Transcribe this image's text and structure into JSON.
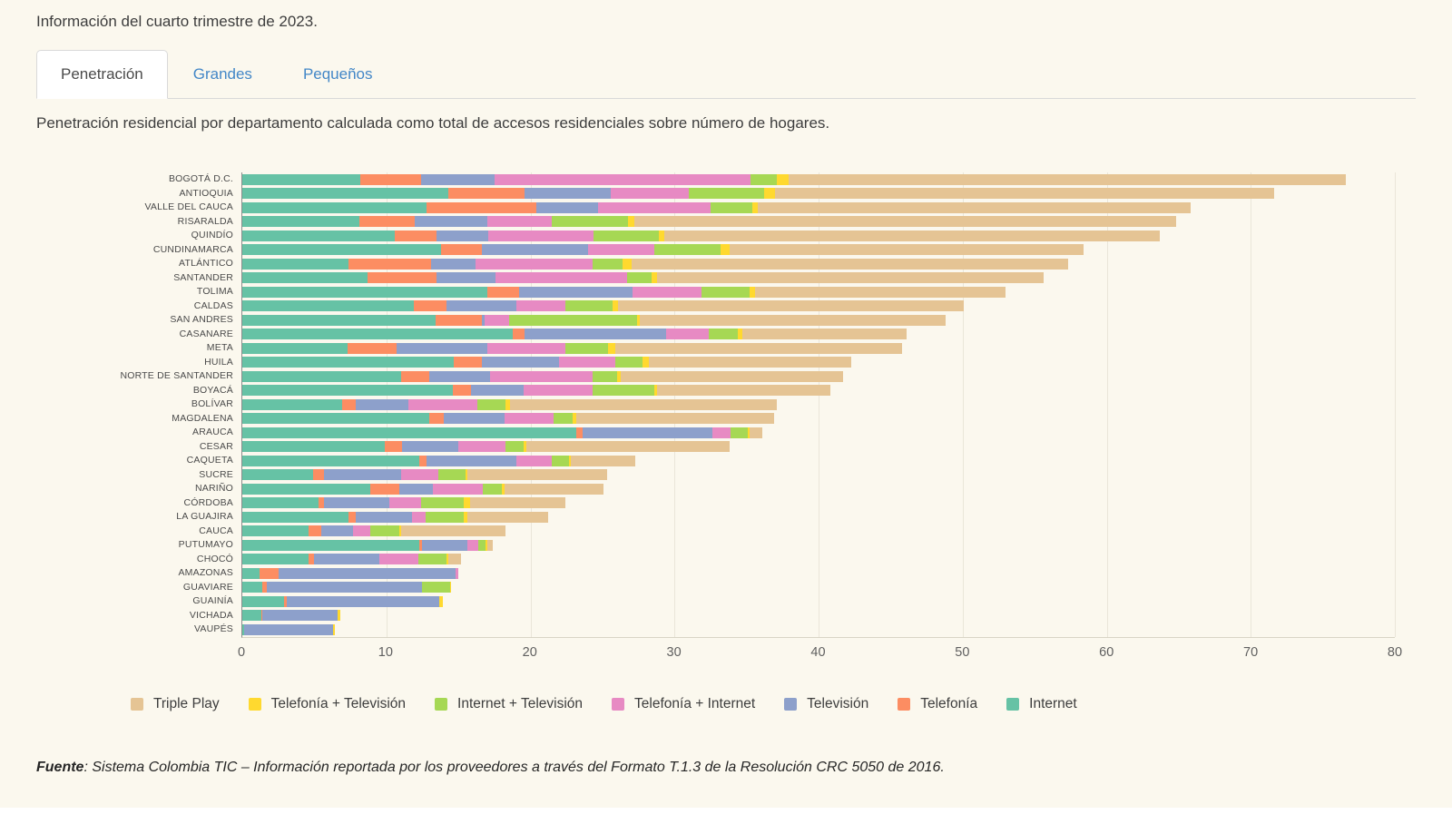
{
  "page": {
    "title": "Información del cuarto trimestre de 2023.",
    "subtitle": "Penetración residencial por departamento calculada como total de accesos residenciales sobre número de hogares.",
    "source_prefix": "Fuente",
    "source_text": ": Sistema Colombia TIC – Información reportada por los proveedores a través del Formato T.1.3 de la Resolución CRC 5050 de 2016."
  },
  "tabs": [
    {
      "label": "Penetración",
      "active": true
    },
    {
      "label": "Grandes",
      "active": false
    },
    {
      "label": "Pequeños",
      "active": false
    }
  ],
  "chart_data": {
    "type": "bar",
    "orientation": "horizontal",
    "stacked": true,
    "grid": true,
    "xlim": [
      0,
      80
    ],
    "x_ticks": [
      0,
      10,
      20,
      30,
      40,
      50,
      60,
      70,
      80
    ],
    "legend_position": "bottom",
    "legend_order": [
      "Triple Play",
      "Telefonía + Televisión",
      "Internet + Televisión",
      "Telefonía + Internet",
      "Televisión",
      "Telefonía",
      "Internet"
    ],
    "categories": [
      "BOGOTÁ D.C.",
      "ANTIOQUIA",
      "VALLE DEL CAUCA",
      "RISARALDA",
      "QUINDÍO",
      "CUNDINAMARCA",
      "ATLÁNTICO",
      "SANTANDER",
      "TOLIMA",
      "CALDAS",
      "SAN ANDRES",
      "CASANARE",
      "META",
      "HUILA",
      "NORTE DE SANTANDER",
      "BOYACÁ",
      "BOLÍVAR",
      "MAGDALENA",
      "ARAUCA",
      "CESAR",
      "CAQUETA",
      "SUCRE",
      "NARIÑO",
      "CÓRDOBA",
      "LA GUAJIRA",
      "CAUCA",
      "PUTUMAYO",
      "CHOCÓ",
      "AMAZONAS",
      "GUAVIARE",
      "GUAINÍA",
      "VICHADA",
      "VAUPÉS"
    ],
    "series": [
      {
        "name": "Internet",
        "color": "#66c2a5",
        "values": [
          8.2,
          14.3,
          12.8,
          8.1,
          10.6,
          13.8,
          7.4,
          8.7,
          17.0,
          11.9,
          13.4,
          18.8,
          7.3,
          14.7,
          11.0,
          14.6,
          6.9,
          13.0,
          23.2,
          9.9,
          12.3,
          4.9,
          8.9,
          5.3,
          7.4,
          4.6,
          12.3,
          4.6,
          1.2,
          1.4,
          2.9,
          1.3,
          0.1
        ]
      },
      {
        "name": "Telefonía",
        "color": "#fc8d62",
        "values": [
          4.2,
          5.3,
          7.6,
          3.9,
          2.9,
          2.8,
          5.7,
          4.8,
          2.2,
          2.3,
          3.2,
          0.8,
          3.4,
          1.9,
          2.0,
          1.3,
          1.0,
          1.0,
          0.4,
          1.2,
          0.5,
          0.8,
          2.0,
          0.4,
          0.5,
          0.9,
          0.2,
          0.4,
          1.3,
          0.3,
          0.2,
          0.1,
          0
        ]
      },
      {
        "name": "Televisión",
        "color": "#8da0cb",
        "values": [
          5.1,
          6.0,
          4.3,
          5.0,
          3.6,
          7.4,
          3.1,
          4.1,
          7.9,
          4.8,
          0.2,
          9.8,
          6.3,
          5.4,
          4.2,
          3.6,
          3.6,
          4.2,
          9.0,
          3.9,
          6.2,
          5.3,
          2.3,
          4.5,
          3.9,
          2.2,
          3.1,
          4.5,
          12.3,
          10.8,
          10.6,
          5.2,
          6.2
        ]
      },
      {
        "name": "Telefonía + Internet",
        "color": "#e78ac3",
        "values": [
          17.8,
          5.4,
          7.8,
          4.5,
          7.3,
          4.6,
          8.1,
          9.1,
          4.8,
          3.4,
          1.7,
          3.0,
          5.4,
          3.9,
          7.1,
          4.8,
          4.8,
          3.4,
          1.3,
          3.3,
          2.5,
          2.6,
          3.5,
          2.2,
          0.9,
          1.2,
          0.8,
          2.7,
          0.2,
          0,
          0,
          0,
          0
        ]
      },
      {
        "name": "Internet + Televisión",
        "color": "#a6d854",
        "values": [
          1.8,
          5.2,
          2.9,
          5.3,
          4.5,
          4.6,
          2.1,
          1.7,
          3.3,
          3.3,
          8.9,
          2.0,
          3.0,
          1.9,
          1.7,
          4.3,
          2.0,
          1.3,
          1.2,
          1.2,
          1.2,
          1.9,
          1.3,
          3.0,
          2.7,
          2.0,
          0.5,
          2.0,
          0,
          1.9,
          0,
          0,
          0
        ]
      },
      {
        "name": "Telefonía + Televisión",
        "color": "#ffd92f",
        "values": [
          0.8,
          0.8,
          0.4,
          0.4,
          0.4,
          0.6,
          0.6,
          0.4,
          0.4,
          0.4,
          0.2,
          0.3,
          0.5,
          0.4,
          0.3,
          0.2,
          0.3,
          0.3,
          0.1,
          0.2,
          0.1,
          0.1,
          0.2,
          0.4,
          0.2,
          0.1,
          0.1,
          0.1,
          0,
          0.1,
          0.2,
          0.2,
          0.1
        ]
      },
      {
        "name": "Triple Play",
        "color": "#e5c494",
        "values": [
          38.7,
          34.6,
          30.0,
          37.6,
          34.4,
          24.6,
          30.3,
          26.8,
          17.4,
          24.0,
          21.2,
          11.4,
          19.9,
          14.1,
          15.4,
          12.0,
          18.5,
          13.7,
          0.9,
          14.1,
          4.5,
          9.7,
          6.9,
          6.6,
          5.6,
          7.3,
          0.4,
          0.9,
          0,
          0,
          0,
          0,
          0
        ]
      }
    ]
  }
}
